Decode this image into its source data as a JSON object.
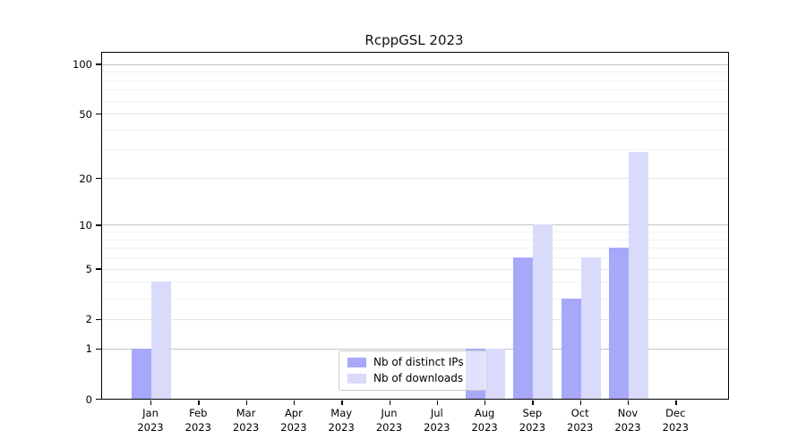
{
  "chart_data": {
    "type": "bar",
    "title": "RcppGSL 2023",
    "categories": [
      {
        "month": "Jan",
        "year": "2023"
      },
      {
        "month": "Feb",
        "year": "2023"
      },
      {
        "month": "Mar",
        "year": "2023"
      },
      {
        "month": "Apr",
        "year": "2023"
      },
      {
        "month": "May",
        "year": "2023"
      },
      {
        "month": "Jun",
        "year": "2023"
      },
      {
        "month": "Jul",
        "year": "2023"
      },
      {
        "month": "Aug",
        "year": "2023"
      },
      {
        "month": "Sep",
        "year": "2023"
      },
      {
        "month": "Oct",
        "year": "2023"
      },
      {
        "month": "Nov",
        "year": "2023"
      },
      {
        "month": "Dec",
        "year": "2023"
      }
    ],
    "series": [
      {
        "name": "Nb of distinct IPs",
        "color": "#a8a8fa",
        "values": [
          1,
          0,
          0,
          0,
          0,
          0,
          0,
          1,
          6,
          3,
          7,
          0
        ]
      },
      {
        "name": "Nb of downloads",
        "color": "#dadafa",
        "values": [
          4,
          0,
          0,
          0,
          0,
          0,
          0,
          1,
          10,
          6,
          29,
          0
        ]
      }
    ],
    "y_scale": "log1p",
    "y_ticks": [
      0,
      1,
      2,
      5,
      10,
      20,
      50,
      100
    ],
    "y_minor_gridlines": [
      3,
      4,
      6,
      7,
      8,
      9,
      30,
      40,
      60,
      70,
      80,
      90
    ],
    "ylim": [
      0,
      117
    ],
    "xlabel": "",
    "ylabel": "",
    "grid": "horizontal",
    "legend_position": "bottom-center",
    "colors": {
      "background": "#ffffff",
      "axis": "#000000",
      "grid_power10": "#c4c4c4",
      "grid_major": "#e6e6e6",
      "grid_minor": "#f3f3f3",
      "legend_border": "#cccccc"
    }
  }
}
